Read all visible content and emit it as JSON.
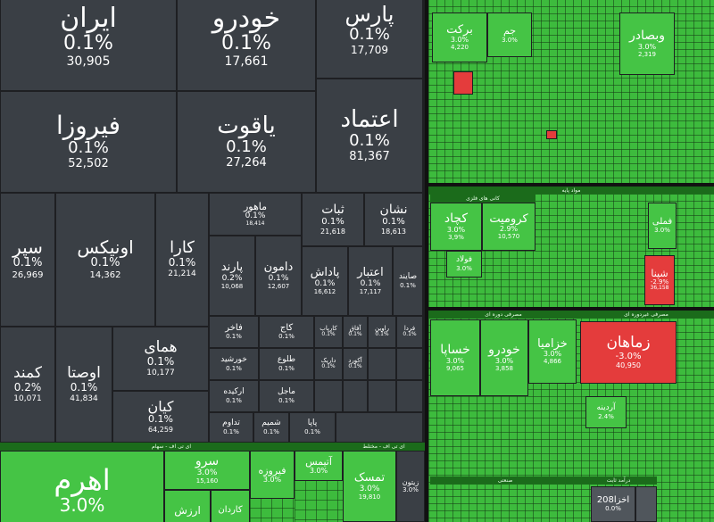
{
  "cells": [
    {
      "id": "iran",
      "name": "ایران",
      "pct": "0.1%",
      "val": "30,905"
    },
    {
      "id": "khodro2",
      "name": "خودرو",
      "pct": "0.1%",
      "val": "17,661"
    },
    {
      "id": "pars",
      "name": "پارس",
      "pct": "0.1%",
      "val": "17,709"
    },
    {
      "id": "firouza",
      "name": "فیروزا",
      "pct": "0.1%",
      "val": "52,502"
    },
    {
      "id": "yaghoot",
      "name": "یاقوت",
      "pct": "0.1%",
      "val": "27,264"
    },
    {
      "id": "etemad",
      "name": "اعتماد",
      "pct": "0.1%",
      "val": "81,367"
    },
    {
      "id": "separ",
      "name": "سپر",
      "pct": "0.1%",
      "val": "26,969"
    },
    {
      "id": "onix",
      "name": "اونیکس",
      "pct": "0.1%",
      "val": "14,362"
    },
    {
      "id": "kara",
      "name": "کارا",
      "pct": "0.1%",
      "val": "21,214"
    },
    {
      "id": "maahoor",
      "name": "ماهور",
      "pct": "0.1%",
      "val": "18,414"
    },
    {
      "id": "sabat",
      "name": "ثبات",
      "pct": "0.1%",
      "val": "21,618"
    },
    {
      "id": "neshan",
      "name": "نشان",
      "pct": "0.1%",
      "val": "18,613"
    },
    {
      "id": "parand",
      "name": "پارند",
      "pct": "0.2%",
      "val": "10,068"
    },
    {
      "id": "damoon",
      "name": "دامون",
      "pct": "0.1%",
      "val": "12,607"
    },
    {
      "id": "padash",
      "name": "پاداش",
      "pct": "0.1%",
      "val": "16,612"
    },
    {
      "id": "etebar",
      "name": "اعتبار",
      "pct": "0.1%",
      "val": "17,117"
    },
    {
      "id": "sayena",
      "name": "صایند",
      "pct": "0.1%",
      "val": ""
    },
    {
      "id": "kamand",
      "name": "کمند",
      "pct": "0.2%",
      "val": "10,071"
    },
    {
      "id": "owsta",
      "name": "اوصتا",
      "pct": "0.1%",
      "val": "41,834"
    },
    {
      "id": "homay",
      "name": "همای",
      "pct": "0.1%",
      "val": "10,177"
    },
    {
      "id": "kian",
      "name": "کیان",
      "pct": "0.1%",
      "val": "64,259"
    },
    {
      "id": "fakher",
      "name": "فاخر",
      "pct": "0.1%",
      "val": ""
    },
    {
      "id": "kaj",
      "name": "کاج",
      "pct": "0.1%",
      "val": ""
    },
    {
      "id": "kabab",
      "name": "کاریاب",
      "pct": "0.1%",
      "val": ""
    },
    {
      "id": "afagh",
      "name": "آفاق",
      "pct": "0.1%",
      "val": ""
    },
    {
      "id": "ravin",
      "name": "راوین",
      "pct": "0.1%",
      "val": ""
    },
    {
      "id": "farda",
      "name": "فردا",
      "pct": "0.1%",
      "val": ""
    },
    {
      "id": "khorshid",
      "name": "خورشید",
      "pct": "0.1%",
      "val": ""
    },
    {
      "id": "tolou",
      "name": "طلوع",
      "pct": "0.1%",
      "val": ""
    },
    {
      "id": "daryak",
      "name": "داریک",
      "pct": "0.1%",
      "val": ""
    },
    {
      "id": "akord",
      "name": "آکورد",
      "pct": "0.1%",
      "val": ""
    },
    {
      "id": "arkide",
      "name": "ارکیده",
      "pct": "0.1%",
      "val": ""
    },
    {
      "id": "majel",
      "name": "ماجل",
      "pct": "0.1%",
      "val": ""
    },
    {
      "id": "tadavom",
      "name": "تداوم",
      "pct": "0.1%",
      "val": ""
    },
    {
      "id": "shamim",
      "name": "شمیم",
      "pct": "0.1%",
      "val": ""
    },
    {
      "id": "papa",
      "name": "پاپا",
      "pct": "0.1%",
      "val": ""
    },
    {
      "id": "ahrom",
      "name": "اهرم",
      "pct": "3.0%",
      "val": ""
    },
    {
      "id": "sarv",
      "name": "سرو",
      "pct": "3.0%",
      "val": "15,160"
    },
    {
      "id": "firooze",
      "name": "فیروزه",
      "pct": "3.0%",
      "val": ""
    },
    {
      "id": "atimas",
      "name": "آتیمس",
      "pct": "3.0%",
      "val": ""
    },
    {
      "id": "arzesh",
      "name": "ارزش",
      "pct": "",
      "val": ""
    },
    {
      "id": "kardan",
      "name": "کاردان",
      "pct": "",
      "val": ""
    },
    {
      "id": "tamask",
      "name": "تمسک",
      "pct": "3.0%",
      "val": "19,810"
    },
    {
      "id": "zitoon",
      "name": "زیتون",
      "pct": "3.0%",
      "val": ""
    },
    {
      "id": "barakat",
      "name": "برکت",
      "pct": "3.0%",
      "val": "4,220"
    },
    {
      "id": "jam",
      "name": "جم",
      "pct": "3.0%",
      "val": ""
    },
    {
      "id": "vebsader",
      "name": "وبصادر",
      "pct": "3.0%",
      "val": "2,319"
    },
    {
      "id": "kachad",
      "name": "کچاد",
      "pct": "3.0%",
      "val": "3,9%"
    },
    {
      "id": "kromit",
      "name": "کرومیت",
      "pct": "2.9%",
      "val": "10,570"
    },
    {
      "id": "foulad",
      "name": "فولاد",
      "pct": "3.0%",
      "val": ""
    },
    {
      "id": "felezi",
      "name": "فملی",
      "pct": "3.0%",
      "val": ""
    },
    {
      "id": "shapna",
      "name": "شپنا",
      "pct": "-2.9%",
      "val": "36,158"
    },
    {
      "id": "khasapa",
      "name": "خساپا",
      "pct": "3.0%",
      "val": "9,065"
    },
    {
      "id": "khodro",
      "name": "خودرو",
      "pct": "3.0%",
      "val": "3,858"
    },
    {
      "id": "khazamia",
      "name": "خزامیا",
      "pct": "3.0%",
      "val": "4,866"
    },
    {
      "id": "zamahan",
      "name": "زماهان",
      "pct": "-3.0%",
      "val": "40,950"
    },
    {
      "id": "ardine",
      "name": "آردینه",
      "pct": "2.4%",
      "val": ""
    },
    {
      "id": "ahrom208",
      "name": "اخزا208",
      "pct": "0.0%",
      "val": ""
    }
  ],
  "headers": [
    {
      "id": "h_vahed",
      "label": "مواد پایه"
    },
    {
      "id": "h_kala",
      "label": "کانی های فلزی"
    },
    {
      "id": "h_sanat",
      "label": "مصرفی دوره ای"
    },
    {
      "id": "h_bank",
      "label": "مصرفی غیردوره ای"
    },
    {
      "id": "h_etf",
      "label": "ای تی اف - سهام"
    },
    {
      "id": "h_dara",
      "label": "درآمد ثابت"
    },
    {
      "id": "h_sanati",
      "label": "صنعتی"
    },
    {
      "id": "h_kharid",
      "label": "ای تی اف - مختلط"
    }
  ]
}
